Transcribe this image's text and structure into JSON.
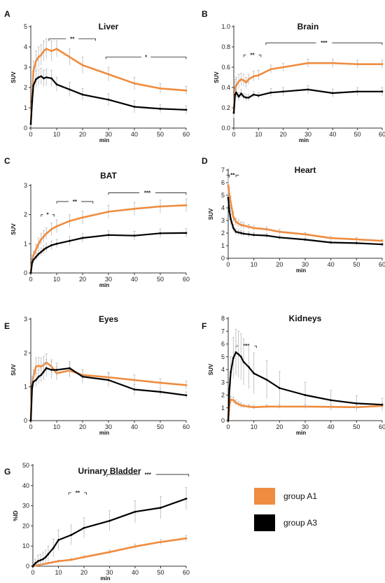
{
  "colors": {
    "group_a1": "#ef8c3f",
    "group_a3": "#000000",
    "error_bar": "#b8b8b8",
    "axis": "#333333"
  },
  "legend": {
    "placement": "right of panel G",
    "entries": [
      {
        "label": "group A1",
        "color": "#ef8c3f"
      },
      {
        "label": "group A3",
        "color": "#000000"
      }
    ]
  },
  "chart_data": [
    {
      "panel": "A",
      "title": "Liver",
      "type": "line",
      "xlabel": "min",
      "ylabel": "SUV",
      "xlim": [
        0,
        60
      ],
      "ylim": [
        0,
        5
      ],
      "xticks": [
        0,
        10,
        20,
        30,
        40,
        50,
        60
      ],
      "yticks": [
        0,
        1,
        2,
        3,
        4,
        5
      ],
      "yticklabels": [
        "0",
        "1",
        "2",
        "3",
        "4",
        "5"
      ],
      "series": [
        {
          "name": "group A1",
          "color": "#ef8c3f",
          "x": [
            0,
            0.5,
            1,
            2,
            3,
            4,
            5,
            6,
            8,
            10,
            15,
            20,
            30,
            40,
            50,
            60
          ],
          "y": [
            0.2,
            1.5,
            2.8,
            3.3,
            3.5,
            3.6,
            3.8,
            3.9,
            3.8,
            3.9,
            3.5,
            3.1,
            2.65,
            2.2,
            1.95,
            1.85
          ],
          "err": [
            0.1,
            0.4,
            0.5,
            0.5,
            0.5,
            0.5,
            0.5,
            0.5,
            0.5,
            0.4,
            0.4,
            0.4,
            0.35,
            0.3,
            0.25,
            0.2
          ]
        },
        {
          "name": "group A3",
          "color": "#000000",
          "x": [
            0,
            0.5,
            1,
            2,
            3,
            4,
            5,
            6,
            8,
            10,
            15,
            20,
            30,
            40,
            50,
            60
          ],
          "y": [
            0.2,
            1.3,
            2.1,
            2.4,
            2.5,
            2.55,
            2.45,
            2.5,
            2.45,
            2.15,
            1.9,
            1.65,
            1.4,
            1.05,
            0.95,
            0.9
          ],
          "err": [
            0.1,
            0.4,
            0.4,
            0.4,
            0.4,
            0.4,
            0.4,
            0.4,
            0.4,
            0.35,
            0.35,
            0.3,
            0.3,
            0.3,
            0.2,
            0.2
          ]
        }
      ],
      "significance": [
        {
          "label": "**",
          "x_start": 7,
          "x_end": 25,
          "y": 4.4
        },
        {
          "label": "*",
          "x_start": 29,
          "x_end": 60,
          "y": 3.5
        }
      ]
    },
    {
      "panel": "B",
      "title": "Brain",
      "type": "line",
      "xlabel": "min",
      "ylabel": "SUV",
      "xlim": [
        0,
        60
      ],
      "ylim": [
        0,
        1.0
      ],
      "xticks": [
        0,
        10,
        20,
        30,
        40,
        50,
        60
      ],
      "yticks": [
        0,
        0.2,
        0.4,
        0.6,
        0.8,
        1.0
      ],
      "yticklabels": [
        "0.0",
        "0.2",
        "0.4",
        "0.6",
        "0.8",
        "1.0"
      ],
      "series": [
        {
          "name": "group A1",
          "color": "#ef8c3f",
          "x": [
            0,
            0.5,
            1,
            2,
            3,
            4,
            5,
            6,
            8,
            10,
            15,
            20,
            30,
            40,
            50,
            60
          ],
          "y": [
            0.15,
            0.4,
            0.42,
            0.46,
            0.48,
            0.47,
            0.45,
            0.48,
            0.51,
            0.52,
            0.58,
            0.6,
            0.64,
            0.64,
            0.63,
            0.63
          ],
          "err": [
            0.05,
            0.08,
            0.08,
            0.07,
            0.06,
            0.06,
            0.05,
            0.05,
            0.05,
            0.05,
            0.04,
            0.04,
            0.04,
            0.04,
            0.04,
            0.04
          ]
        },
        {
          "name": "group A3",
          "color": "#000000",
          "x": [
            0,
            0.5,
            1,
            2,
            3,
            4,
            5,
            6,
            8,
            10,
            15,
            20,
            30,
            40,
            50,
            60
          ],
          "y": [
            0.15,
            0.33,
            0.35,
            0.31,
            0.34,
            0.31,
            0.3,
            0.3,
            0.33,
            0.32,
            0.35,
            0.36,
            0.38,
            0.345,
            0.36,
            0.36
          ],
          "err": [
            0.05,
            0.05,
            0.05,
            0.04,
            0.04,
            0.03,
            0.03,
            0.03,
            0.03,
            0.03,
            0.04,
            0.04,
            0.04,
            0.04,
            0.04,
            0.04
          ]
        }
      ],
      "significance": [
        {
          "label": "**",
          "x_start": 4,
          "x_end": 11,
          "y": 0.72
        },
        {
          "label": "***",
          "x_start": 13,
          "x_end": 60,
          "y": 0.84
        }
      ]
    },
    {
      "panel": "C",
      "title": "BAT",
      "type": "line",
      "xlabel": "min",
      "ylabel": "SUV",
      "xlim": [
        0,
        60
      ],
      "ylim": [
        0,
        3
      ],
      "xticks": [
        0,
        10,
        20,
        30,
        40,
        50,
        60
      ],
      "yticks": [
        0,
        1,
        2,
        3
      ],
      "yticklabels": [
        "0",
        "1",
        "2",
        "3"
      ],
      "series": [
        {
          "name": "group A1",
          "color": "#ef8c3f",
          "x": [
            0,
            0.5,
            1,
            2,
            3,
            4,
            5,
            6,
            8,
            10,
            15,
            20,
            30,
            40,
            50,
            60
          ],
          "y": [
            0.0,
            0.45,
            0.6,
            0.8,
            1.0,
            1.15,
            1.25,
            1.35,
            1.5,
            1.6,
            1.78,
            1.9,
            2.1,
            2.2,
            2.28,
            2.32
          ],
          "err": [
            0.05,
            0.15,
            0.15,
            0.18,
            0.2,
            0.2,
            0.2,
            0.2,
            0.22,
            0.22,
            0.22,
            0.22,
            0.22,
            0.22,
            0.22,
            0.22
          ]
        },
        {
          "name": "group A3",
          "color": "#000000",
          "x": [
            0,
            0.5,
            1,
            2,
            3,
            4,
            5,
            6,
            8,
            10,
            15,
            20,
            30,
            40,
            50,
            60
          ],
          "y": [
            0.0,
            0.35,
            0.45,
            0.55,
            0.65,
            0.72,
            0.8,
            0.86,
            0.95,
            1.0,
            1.1,
            1.2,
            1.3,
            1.28,
            1.36,
            1.37
          ],
          "err": [
            0.05,
            0.1,
            0.1,
            0.12,
            0.12,
            0.14,
            0.14,
            0.15,
            0.15,
            0.15,
            0.15,
            0.15,
            0.15,
            0.15,
            0.15,
            0.15
          ]
        }
      ],
      "significance": [
        {
          "label": "*",
          "x_start": 4,
          "x_end": 9,
          "y": 2.0
        },
        {
          "label": "**",
          "x_start": 10,
          "x_end": 24,
          "y": 2.45
        },
        {
          "label": "***",
          "x_start": 30,
          "x_end": 60,
          "y": 2.75
        }
      ]
    },
    {
      "panel": "D",
      "title": "Heart",
      "type": "line",
      "xlabel": "min",
      "ylabel": "SUV",
      "xlim": [
        0,
        60
      ],
      "ylim": [
        0,
        7
      ],
      "xticks": [
        0,
        10,
        20,
        30,
        40,
        50,
        60
      ],
      "yticks": [
        0,
        1,
        2,
        3,
        4,
        5,
        6,
        7
      ],
      "yticklabels": [
        "0",
        "1",
        "2",
        "3",
        "4",
        "5",
        "6",
        "7"
      ],
      "series": [
        {
          "name": "group A1",
          "color": "#ef8c3f",
          "x": [
            0,
            0.5,
            1,
            2,
            3,
            4,
            5,
            6,
            8,
            10,
            15,
            20,
            30,
            40,
            50,
            60
          ],
          "y": [
            5.8,
            5.0,
            4.4,
            3.3,
            2.9,
            2.75,
            2.65,
            2.6,
            2.5,
            2.4,
            2.3,
            2.1,
            1.9,
            1.6,
            1.5,
            1.38
          ],
          "err": [
            0.6,
            0.6,
            0.5,
            0.4,
            0.3,
            0.3,
            0.25,
            0.25,
            0.2,
            0.2,
            0.2,
            0.2,
            0.15,
            0.15,
            0.15,
            0.12
          ]
        },
        {
          "name": "group A3",
          "color": "#000000",
          "x": [
            0,
            0.5,
            1,
            2,
            3,
            4,
            5,
            6,
            8,
            10,
            15,
            20,
            30,
            40,
            50,
            60
          ],
          "y": [
            4.8,
            3.7,
            3.1,
            2.4,
            2.1,
            2.05,
            2.0,
            1.95,
            1.9,
            1.85,
            1.8,
            1.65,
            1.48,
            1.25,
            1.2,
            1.1
          ],
          "err": [
            0.6,
            0.5,
            0.4,
            0.3,
            0.25,
            0.2,
            0.2,
            0.2,
            0.2,
            0.18,
            0.18,
            0.15,
            0.15,
            0.12,
            0.12,
            0.1
          ]
        }
      ],
      "significance": [
        {
          "label": "**",
          "x_start": 0.5,
          "x_end": 3,
          "y": 6.6
        }
      ]
    },
    {
      "panel": "E",
      "title": "Eyes",
      "type": "line",
      "xlabel": "min",
      "ylabel": "SUV",
      "xlim": [
        0,
        60
      ],
      "ylim": [
        0,
        3
      ],
      "xticks": [
        0,
        10,
        20,
        30,
        40,
        50,
        60
      ],
      "yticks": [
        0,
        1,
        2,
        3
      ],
      "yticklabels": [
        "0",
        "1",
        "2",
        "3"
      ],
      "series": [
        {
          "name": "group A1",
          "color": "#ef8c3f",
          "x": [
            0,
            0.5,
            1,
            2,
            3,
            4,
            5,
            6,
            8,
            10,
            15,
            20,
            30,
            40,
            50,
            60
          ],
          "y": [
            0.0,
            1.1,
            1.3,
            1.6,
            1.62,
            1.6,
            1.65,
            1.72,
            1.6,
            1.4,
            1.48,
            1.35,
            1.28,
            1.2,
            1.12,
            1.05
          ],
          "err": [
            0.05,
            0.2,
            0.2,
            0.25,
            0.25,
            0.25,
            0.25,
            0.25,
            0.2,
            0.2,
            0.2,
            0.15,
            0.15,
            0.15,
            0.12,
            0.12
          ]
        },
        {
          "name": "group A3",
          "color": "#000000",
          "x": [
            0,
            0.5,
            1,
            2,
            3,
            4,
            5,
            6,
            8,
            10,
            15,
            20,
            30,
            40,
            50,
            60
          ],
          "y": [
            0.0,
            1.0,
            1.15,
            1.2,
            1.3,
            1.35,
            1.45,
            1.55,
            1.5,
            1.5,
            1.55,
            1.3,
            1.2,
            0.92,
            0.85,
            0.75
          ],
          "err": [
            0.05,
            0.2,
            0.2,
            0.2,
            0.2,
            0.2,
            0.25,
            0.25,
            0.25,
            0.2,
            0.2,
            0.2,
            0.2,
            0.15,
            0.12,
            0.1
          ]
        }
      ],
      "significance": []
    },
    {
      "panel": "F",
      "title": "Kidneys",
      "type": "line",
      "xlabel": "min",
      "ylabel": "SUV",
      "xlim": [
        0,
        60
      ],
      "ylim": [
        0,
        8
      ],
      "xticks": [
        0,
        10,
        20,
        30,
        40,
        50,
        60
      ],
      "yticks": [
        0,
        1,
        2,
        3,
        4,
        5,
        6,
        7,
        8
      ],
      "yticklabels": [
        "0",
        "1",
        "2",
        "3",
        "4",
        "5",
        "6",
        "7",
        "8"
      ],
      "series": [
        {
          "name": "group A1",
          "color": "#ef8c3f",
          "x": [
            0,
            0.5,
            1,
            2,
            3,
            4,
            5,
            6,
            8,
            10,
            15,
            20,
            30,
            40,
            50,
            60
          ],
          "y": [
            0.0,
            1.2,
            1.65,
            1.6,
            1.4,
            1.3,
            1.2,
            1.15,
            1.1,
            1.05,
            1.1,
            1.1,
            1.1,
            1.08,
            1.05,
            1.15
          ],
          "err": [
            0.05,
            0.2,
            0.25,
            0.25,
            0.2,
            0.2,
            0.2,
            0.15,
            0.15,
            0.15,
            0.15,
            0.15,
            0.15,
            0.15,
            0.15,
            0.15
          ]
        },
        {
          "name": "group A3",
          "color": "#000000",
          "x": [
            0,
            0.5,
            1,
            2,
            3,
            4,
            5,
            6,
            8,
            10,
            15,
            20,
            30,
            40,
            50,
            60
          ],
          "y": [
            0.0,
            2.5,
            3.8,
            4.9,
            5.35,
            5.2,
            5.0,
            4.6,
            4.2,
            3.7,
            3.2,
            2.55,
            2.0,
            1.6,
            1.35,
            1.25
          ],
          "err": [
            0.1,
            0.8,
            1.2,
            1.6,
            1.8,
            1.8,
            1.8,
            1.8,
            1.7,
            1.6,
            1.5,
            1.3,
            1.0,
            0.8,
            0.6,
            0.5
          ]
        }
      ],
      "significance": [
        {
          "label": "***",
          "x_start": 3,
          "x_end": 11,
          "y": 5.85
        }
      ]
    },
    {
      "panel": "G",
      "title": "Urinary Bladder",
      "type": "line",
      "xlabel": "min",
      "ylabel": "%ID",
      "xlim": [
        0,
        60
      ],
      "ylim": [
        0,
        50
      ],
      "xticks": [
        0,
        10,
        20,
        30,
        40,
        50,
        60
      ],
      "yticks": [
        0,
        10,
        20,
        30,
        40,
        50
      ],
      "yticklabels": [
        "0",
        "10",
        "20",
        "30",
        "40",
        "50"
      ],
      "series": [
        {
          "name": "group A1",
          "color": "#ef8c3f",
          "x": [
            0,
            1,
            2,
            3,
            4,
            5,
            6,
            8,
            10,
            15,
            20,
            30,
            40,
            50,
            60
          ],
          "y": [
            0.0,
            0.3,
            0.6,
            0.8,
            1.0,
            1.2,
            1.5,
            2.0,
            2.5,
            3.2,
            4.5,
            7.0,
            9.8,
            12.0,
            13.8
          ],
          "err": [
            0.2,
            0.3,
            0.3,
            0.3,
            0.3,
            0.3,
            0.4,
            0.4,
            0.5,
            0.6,
            0.8,
            1.0,
            1.2,
            1.3,
            1.5
          ]
        },
        {
          "name": "group A3",
          "color": "#000000",
          "x": [
            0,
            1,
            2,
            3,
            4,
            5,
            6,
            8,
            10,
            15,
            20,
            30,
            40,
            50,
            60
          ],
          "y": [
            0.0,
            1.5,
            2.5,
            3.0,
            3.5,
            4.5,
            6.0,
            9.0,
            13.0,
            15.5,
            19.0,
            22.5,
            27.0,
            29.0,
            33.5
          ],
          "err": [
            0.5,
            2.0,
            3.0,
            3.0,
            3.5,
            3.5,
            4.0,
            4.5,
            5.0,
            5.0,
            5.0,
            5.0,
            5.5,
            5.5,
            5.5
          ]
        }
      ],
      "significance": [
        {
          "label": "**",
          "x_start": 14,
          "x_end": 21,
          "y": 36.5
        },
        {
          "label": "***",
          "x_start": 29,
          "x_end": 61,
          "y": 45.5
        }
      ]
    }
  ]
}
